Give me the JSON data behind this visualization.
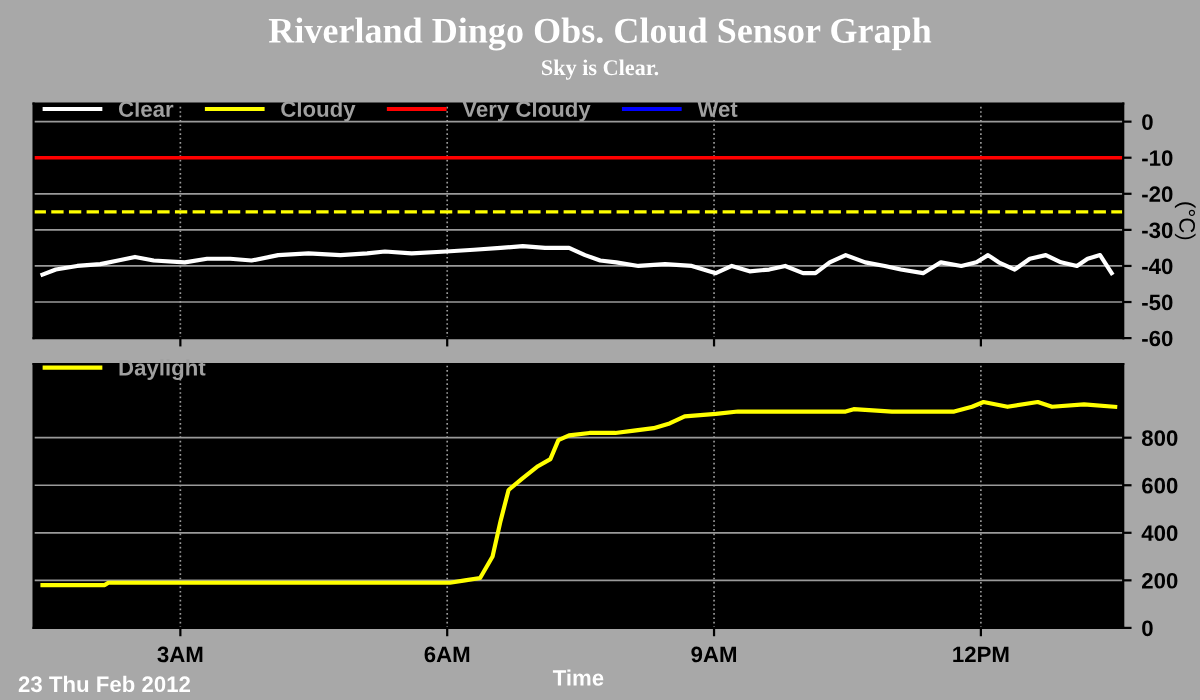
{
  "chart_data": [
    {
      "type": "line",
      "title": "Riverland Dingo Obs. Cloud Sensor Graph",
      "subtitle": "Sky is Clear.",
      "ylabel": "(°C)",
      "x": [
        1.45,
        1.6,
        1.84,
        2.1,
        2.3,
        2.49,
        2.7,
        3.05,
        3.3,
        3.56,
        3.8,
        4.1,
        4.44,
        4.8,
        5.1,
        5.3,
        5.6,
        5.99,
        6.3,
        6.6,
        6.85,
        7.1,
        7.37,
        7.55,
        7.72,
        7.9,
        8.15,
        8.45,
        8.75,
        9.02,
        9.2,
        9.4,
        9.62,
        9.8,
        10.0,
        10.14,
        10.3,
        10.48,
        10.7,
        10.92,
        11.1,
        11.35,
        11.55,
        11.78,
        11.95,
        12.08,
        12.2,
        12.38,
        12.55,
        12.73,
        12.9,
        13.08,
        13.2,
        13.34,
        13.47
      ],
      "series": [
        {
          "name": "Clear",
          "color": "#ffffff",
          "values": [
            -42.4,
            -41,
            -40,
            -39.5,
            -38.5,
            -37.5,
            -38.5,
            -39,
            -38,
            -38,
            -38.5,
            -37,
            -36.5,
            -37,
            -36.5,
            -36,
            -36.5,
            -36,
            -35.5,
            -35,
            -34.5,
            -35,
            -35,
            -37,
            -38.5,
            -39,
            -40,
            -39.5,
            -40,
            -42,
            -40,
            -41.5,
            -41,
            -40,
            -42,
            -42,
            -39,
            -37,
            -39,
            -40,
            -41,
            -42,
            -39,
            -40,
            -39,
            -37,
            -39,
            -41,
            -38,
            -37,
            -39,
            -40,
            -38,
            -37,
            -42
          ]
        },
        {
          "name": "Cloudy",
          "color": "#ffff00",
          "values": [
            null,
            null,
            null,
            null,
            null,
            null,
            null,
            null,
            null,
            null,
            null,
            null,
            null,
            null,
            null,
            null,
            null,
            null,
            null,
            null,
            null,
            null,
            null,
            null,
            null,
            null,
            null,
            null,
            null,
            null,
            null,
            null,
            null,
            null,
            null,
            null,
            null,
            null,
            null,
            null,
            null,
            null,
            null,
            null,
            null,
            null,
            null,
            null,
            null,
            null,
            null,
            null,
            null,
            null,
            null
          ]
        },
        {
          "name": "Very Cloudy",
          "color": "#ff0000",
          "values": [
            null,
            null,
            null,
            null,
            null,
            null,
            null,
            null,
            null,
            null,
            null,
            null,
            null,
            null,
            null,
            null,
            null,
            null,
            null,
            null,
            null,
            null,
            null,
            null,
            null,
            null,
            null,
            null,
            null,
            null,
            null,
            null,
            null,
            null,
            null,
            null,
            null,
            null,
            null,
            null,
            null,
            null,
            null,
            null,
            null,
            null,
            null,
            null,
            null,
            null,
            null,
            null,
            null,
            null,
            null
          ]
        },
        {
          "name": "Wet",
          "color": "#0000ff",
          "values": [
            null,
            null,
            null,
            null,
            null,
            null,
            null,
            null,
            null,
            null,
            null,
            null,
            null,
            null,
            null,
            null,
            null,
            null,
            null,
            null,
            null,
            null,
            null,
            null,
            null,
            null,
            null,
            null,
            null,
            null,
            null,
            null,
            null,
            null,
            null,
            null,
            null,
            null,
            null,
            null,
            null,
            null,
            null,
            null,
            null,
            null,
            null,
            null,
            null,
            null,
            null,
            null,
            null,
            null,
            null
          ]
        }
      ],
      "xlim": [
        1.35,
        13.6
      ],
      "xticks": [
        {
          "value": 3,
          "label": null
        },
        {
          "value": 6,
          "label": null
        },
        {
          "value": 9,
          "label": null
        },
        {
          "value": 12,
          "label": null
        }
      ],
      "ylim": [
        -60,
        5
      ],
      "yticks": [
        -60,
        -50,
        -40,
        -30,
        -20,
        -10,
        0
      ],
      "tick_labels": "y",
      "grid": true,
      "legend": "top left",
      "line_style": "solid",
      "marker": "none",
      "ref_lines": [
        {
          "axis": "y",
          "value": -10,
          "color": "#ff0000",
          "line_style": "solid"
        },
        {
          "axis": "y",
          "value": -25,
          "color": "#ffff00",
          "line_style": "dashed"
        }
      ]
    },
    {
      "type": "line",
      "xlabel": "Time",
      "annotations": [
        "23 Thu Feb 2012"
      ],
      "x": [
        1.45,
        2.15,
        2.19,
        3.0,
        4.5,
        6.03,
        6.2,
        6.37,
        6.51,
        6.6,
        6.69,
        6.85,
        7.02,
        7.16,
        7.25,
        7.37,
        7.6,
        7.89,
        8.1,
        8.32,
        8.5,
        8.67,
        9.02,
        9.27,
        9.8,
        10.48,
        10.57,
        11.0,
        11.4,
        11.7,
        11.9,
        12.03,
        12.3,
        12.64,
        12.8,
        13.16,
        13.51
      ],
      "series": [
        {
          "name": "Daylight",
          "color": "#ffff00",
          "values": [
            180,
            180,
            190,
            190,
            190,
            190,
            200,
            210,
            300,
            450,
            580,
            630,
            680,
            710,
            790,
            810,
            820,
            820,
            830,
            840,
            860,
            890,
            900,
            910,
            910,
            910,
            920,
            910,
            910,
            910,
            930,
            950,
            930,
            950,
            930,
            940,
            930
          ]
        }
      ],
      "xlim": [
        1.35,
        13.6
      ],
      "xticks": [
        {
          "value": 3,
          "label": "3AM"
        },
        {
          "value": 6,
          "label": "6AM"
        },
        {
          "value": 9,
          "label": "9AM"
        },
        {
          "value": 12,
          "label": "12PM"
        }
      ],
      "ylim": [
        0,
        1110
      ],
      "yticks": [
        0,
        200,
        400,
        600,
        800
      ],
      "grid": true,
      "legend": "top left",
      "line_style": "solid",
      "marker": "none"
    }
  ]
}
